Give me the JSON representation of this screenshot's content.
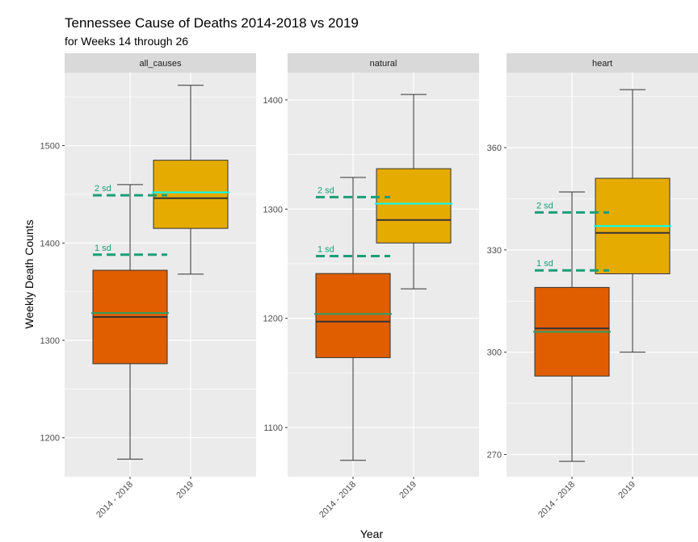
{
  "title": "Tennessee Cause of Deaths  2014-2018 vs 2019",
  "subtitle": "for Weeks 14 through 26",
  "chart_data": {
    "type": "boxplot",
    "xlabel": "Year",
    "ylabel": "Weekly Death Counts",
    "categories": [
      "2014 - 2018",
      "2019"
    ],
    "colors": {
      "box_2014_2018": "#E05E00",
      "box_2019": "#E6AB00",
      "mean_2014_2018": "#2CA06A",
      "mean_2019": "#00FFFF",
      "sd_lines": "#1B9E77",
      "panel_bg": "#EBEBEB",
      "strip_bg": "#D9D9D9"
    },
    "grid": true,
    "panels": [
      {
        "name": "all_causes",
        "ylim": [
          1160,
          1575
        ],
        "yticks": [
          1200,
          1300,
          1400,
          1500
        ],
        "boxes": [
          {
            "category": "2014 - 2018",
            "min": 1178,
            "q1": 1276,
            "median": 1324,
            "q3": 1372,
            "max": 1460,
            "mean": 1328
          },
          {
            "category": "2019",
            "min": 1368,
            "q1": 1415,
            "median": 1446,
            "q3": 1485,
            "max": 1562,
            "mean": 1452
          }
        ],
        "sd_lines": [
          {
            "label": "1 sd",
            "value": 1388
          },
          {
            "label": "2 sd",
            "value": 1449
          }
        ]
      },
      {
        "name": "natural",
        "ylim": [
          1055,
          1425
        ],
        "yticks": [
          1100,
          1200,
          1300,
          1400
        ],
        "boxes": [
          {
            "category": "2014 - 2018",
            "min": 1070,
            "q1": 1164,
            "median": 1197,
            "q3": 1241,
            "max": 1329,
            "mean": 1204
          },
          {
            "category": "2019",
            "min": 1227,
            "q1": 1269,
            "median": 1290,
            "q3": 1337,
            "max": 1405,
            "mean": 1305
          }
        ],
        "sd_lines": [
          {
            "label": "1 sd",
            "value": 1257
          },
          {
            "label": "2 sd",
            "value": 1311
          }
        ]
      },
      {
        "name": "heart",
        "ylim": [
          263.5,
          382
        ],
        "yticks": [
          270,
          300,
          330,
          360
        ],
        "boxes": [
          {
            "category": "2014 - 2018",
            "min": 268,
            "q1": 293,
            "median": 307,
            "q3": 319,
            "max": 347,
            "mean": 306
          },
          {
            "category": "2019",
            "min": 300,
            "q1": 323,
            "median": 335,
            "q3": 351,
            "max": 377,
            "mean": 337
          }
        ],
        "sd_lines": [
          {
            "label": "1 sd",
            "value": 324
          },
          {
            "label": "2 sd",
            "value": 341
          }
        ]
      }
    ]
  }
}
